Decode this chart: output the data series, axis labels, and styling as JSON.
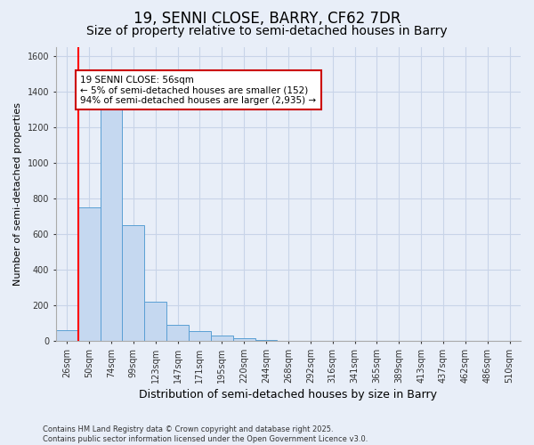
{
  "title": "19, SENNI CLOSE, BARRY, CF62 7DR",
  "subtitle": "Size of property relative to semi-detached houses in Barry",
  "xlabel": "Distribution of semi-detached houses by size in Barry",
  "ylabel": "Number of semi-detached properties",
  "categories": [
    "26sqm",
    "50sqm",
    "74sqm",
    "99sqm",
    "123sqm",
    "147sqm",
    "171sqm",
    "195sqm",
    "220sqm",
    "244sqm",
    "268sqm",
    "292sqm",
    "316sqm",
    "341sqm",
    "365sqm",
    "389sqm",
    "413sqm",
    "437sqm",
    "462sqm",
    "486sqm",
    "510sqm"
  ],
  "values": [
    60,
    750,
    1300,
    650,
    220,
    90,
    55,
    30,
    15,
    5,
    0,
    0,
    0,
    0,
    0,
    0,
    0,
    0,
    0,
    0,
    0
  ],
  "bar_color": "#c5d8f0",
  "bar_edge_color": "#5a9fd4",
  "red_line_x": 0.5,
  "annotation_text": "19 SENNI CLOSE: 56sqm\n← 5% of semi-detached houses are smaller (152)\n94% of semi-detached houses are larger (2,935) →",
  "annotation_box_color": "#ffffff",
  "annotation_box_edge": "#cc0000",
  "ylim": [
    0,
    1650
  ],
  "yticks": [
    0,
    200,
    400,
    600,
    800,
    1000,
    1200,
    1400,
    1600
  ],
  "background_color": "#e8eef8",
  "grid_color": "#c8d4e8",
  "footer": "Contains HM Land Registry data © Crown copyright and database right 2025.\nContains public sector information licensed under the Open Government Licence v3.0.",
  "title_fontsize": 12,
  "subtitle_fontsize": 10,
  "tick_fontsize": 7,
  "ylabel_fontsize": 8,
  "xlabel_fontsize": 9,
  "annotation_fontsize": 7.5,
  "footer_fontsize": 6
}
